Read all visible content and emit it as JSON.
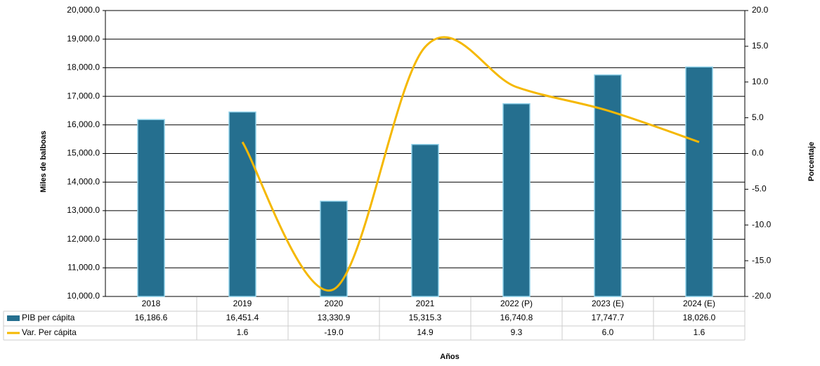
{
  "chart_data": {
    "type": "bar_line_table",
    "categories": [
      "2018",
      "2019",
      "2020",
      "2021",
      "2022 (P)",
      "2023 (E)",
      "2024 (E)"
    ],
    "series": [
      {
        "name": "PIB per cápita",
        "type": "bar",
        "color": "#256f8f",
        "values": [
          16186.6,
          16451.4,
          13330.9,
          15315.3,
          16740.8,
          17747.7,
          18026.0
        ],
        "value_labels": [
          "16,186.6",
          "16,451.4",
          "13,330.9",
          "15,315.3",
          "16,740.8",
          "17,747.7",
          "18,026.0"
        ]
      },
      {
        "name": "Var. Per cápita",
        "type": "line",
        "axis": "y2",
        "color": "#f5b800",
        "values": [
          null,
          1.6,
          -19.0,
          14.9,
          9.3,
          6.0,
          1.6
        ],
        "value_labels": [
          null,
          "1.6",
          "-19.0",
          "14.9",
          "9.3",
          "6.0",
          "1.6"
        ]
      }
    ],
    "y_label": "Miles de balboas",
    "y2_label": "Porcentaje",
    "x_label": "Años",
    "ylim": [
      10000,
      20000
    ],
    "yticks": [
      {
        "value": 10000,
        "label": "10,000.0"
      },
      {
        "value": 11000,
        "label": "11,000.0"
      },
      {
        "value": 12000,
        "label": "12,000.0"
      },
      {
        "value": 13000,
        "label": "13,000.0"
      },
      {
        "value": 14000,
        "label": "14,000.0"
      },
      {
        "value": 15000,
        "label": "15,000.0"
      },
      {
        "value": 16000,
        "label": "16,000.0"
      },
      {
        "value": 17000,
        "label": "17,000.0"
      },
      {
        "value": 18000,
        "label": "18,000.0"
      },
      {
        "value": 19000,
        "label": "19,000.0"
      },
      {
        "value": 20000,
        "label": "20,000.0"
      }
    ],
    "y2lim": [
      -20,
      20
    ],
    "y2ticks": [
      {
        "value": -20,
        "label": "-20.0"
      },
      {
        "value": -15,
        "label": "-15.0"
      },
      {
        "value": -10,
        "label": "-10.0"
      },
      {
        "value": -5,
        "label": "-5.0"
      },
      {
        "value": 0,
        "label": "0.0"
      },
      {
        "value": 5,
        "label": "5.0"
      },
      {
        "value": 10,
        "label": "10.0"
      },
      {
        "value": 15,
        "label": "15.0"
      },
      {
        "value": 20,
        "label": "20.0"
      }
    ],
    "grid": true
  }
}
